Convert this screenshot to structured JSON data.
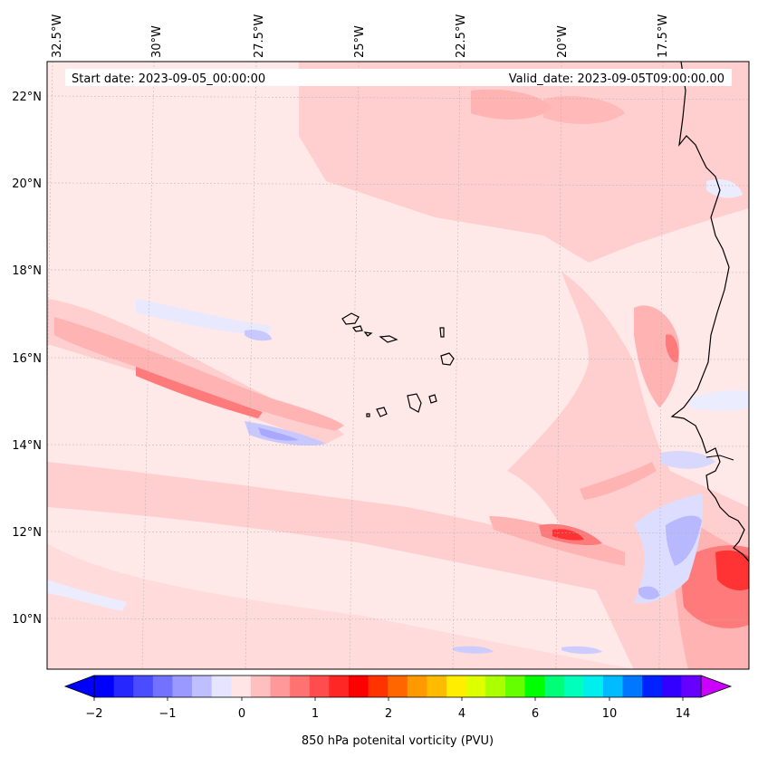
{
  "header": {
    "start_date": "Start date: 2023-09-05_00:00:00",
    "valid_date": "Valid_date: 2023-09-05T09:00:00.00"
  },
  "lon_labels": [
    "32.5°W",
    "30°W",
    "27.5°W",
    "25°W",
    "22.5°W",
    "20°W",
    "17.5°W"
  ],
  "lat_labels": [
    "22°N",
    "20°N",
    "18°N",
    "16°N",
    "14°N",
    "12°N",
    "10°N"
  ],
  "colorbar": {
    "label": "850 hPa potenital vorticity (PVU)",
    "tick_labels": [
      "−2",
      "−1",
      "0",
      "1",
      "2",
      "4",
      "6",
      "10",
      "14"
    ],
    "colors": [
      "#0000ff",
      "#2626ff",
      "#4c4cff",
      "#7272ff",
      "#9999ff",
      "#bfbfff",
      "#e5e5ff",
      "#ffe5e5",
      "#ffbfbf",
      "#ff9999",
      "#ff7272",
      "#ff4c4c",
      "#ff2626",
      "#ff0000",
      "#ff3300",
      "#ff6600",
      "#ff9900",
      "#ffbb00",
      "#ffee00",
      "#ddff00",
      "#aaff00",
      "#66ff00",
      "#00ff00",
      "#00ff77",
      "#00ffbb",
      "#00eeee",
      "#00bbff",
      "#0077ff",
      "#0022ff",
      "#3300ff",
      "#6600ff"
    ],
    "under_color": "#0000ff",
    "over_color": "#cc00ff"
  },
  "map": {
    "background": "#ffe8e8",
    "extent": {
      "lon": [
        -33.0,
        -15.5
      ],
      "lat": [
        8.8,
        22.8
      ]
    }
  }
}
